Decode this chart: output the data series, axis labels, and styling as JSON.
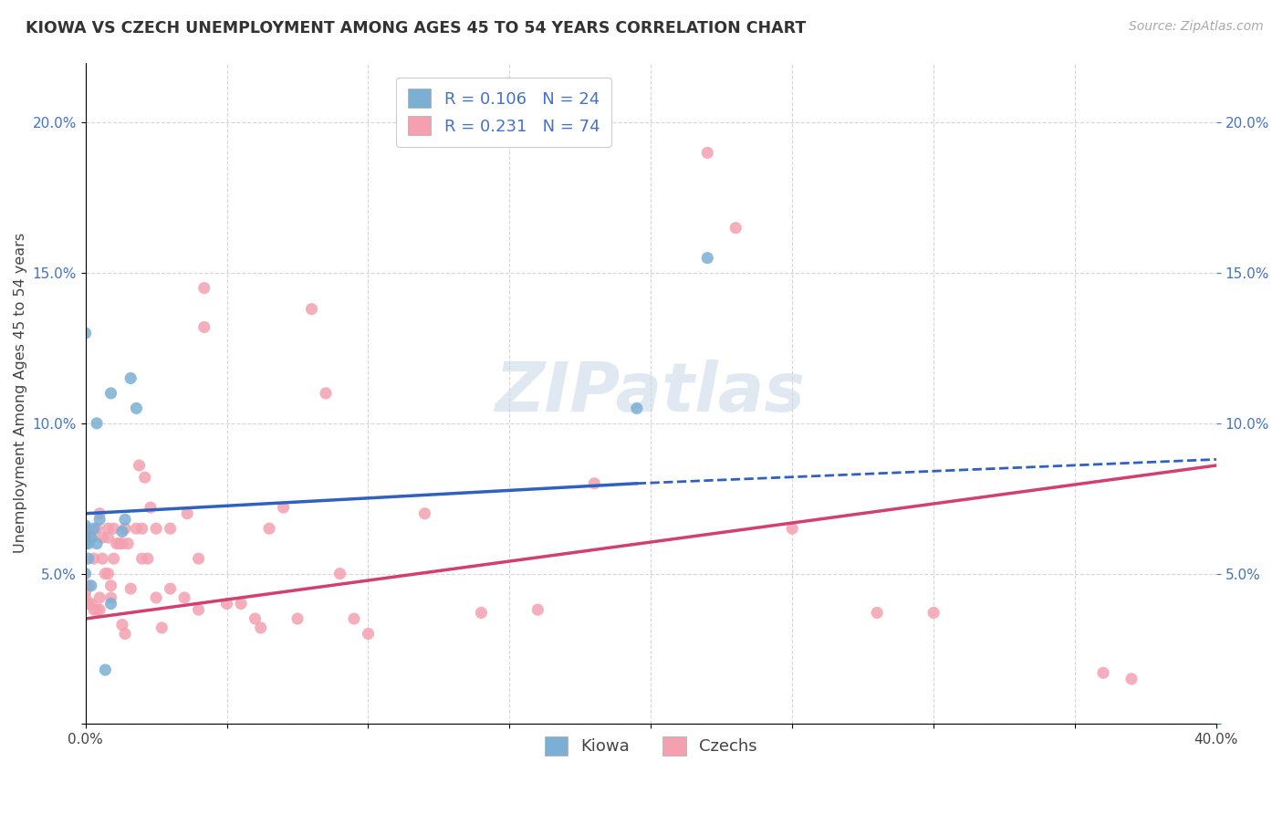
{
  "title": "KIOWA VS CZECH UNEMPLOYMENT AMONG AGES 45 TO 54 YEARS CORRELATION CHART",
  "source": "Source: ZipAtlas.com",
  "ylabel": "Unemployment Among Ages 45 to 54 years",
  "xlim": [
    0.0,
    0.4
  ],
  "ylim": [
    0.0,
    0.22
  ],
  "xticks": [
    0.0,
    0.05,
    0.1,
    0.15,
    0.2,
    0.25,
    0.3,
    0.35,
    0.4
  ],
  "yticks": [
    0.0,
    0.05,
    0.1,
    0.15,
    0.2
  ],
  "xtick_labels": [
    "0.0%",
    "",
    "",
    "",
    "",
    "",
    "",
    "",
    "40.0%"
  ],
  "ytick_labels": [
    "",
    "5.0%",
    "10.0%",
    "15.0%",
    "20.0%"
  ],
  "kiowa_color": "#7bafd4",
  "czechs_color": "#f4a0b0",
  "kiowa_line_color": "#3060c0",
  "czechs_line_color": "#d04070",
  "kiowa_R": "0.106",
  "kiowa_N": "24",
  "czechs_R": "0.231",
  "czechs_N": "74",
  "watermark": "ZIPatlas",
  "kiowa_line_solid": [
    [
      0.0,
      0.07
    ],
    [
      0.195,
      0.08
    ]
  ],
  "kiowa_line_dashed": [
    [
      0.195,
      0.08
    ],
    [
      0.4,
      0.088
    ]
  ],
  "czechs_line": [
    [
      0.0,
      0.035
    ],
    [
      0.4,
      0.086
    ]
  ],
  "kiowa_x": [
    0.0,
    0.0,
    0.0,
    0.0,
    0.0,
    0.0,
    0.0,
    0.001,
    0.001,
    0.002,
    0.002,
    0.003,
    0.004,
    0.004,
    0.005,
    0.007,
    0.009,
    0.009,
    0.013,
    0.014,
    0.016,
    0.018,
    0.195,
    0.22
  ],
  "kiowa_y": [
    0.05,
    0.06,
    0.062,
    0.064,
    0.065,
    0.066,
    0.13,
    0.055,
    0.06,
    0.046,
    0.062,
    0.065,
    0.06,
    0.1,
    0.068,
    0.018,
    0.04,
    0.11,
    0.064,
    0.068,
    0.115,
    0.105,
    0.105,
    0.155
  ],
  "czechs_x": [
    0.0,
    0.0,
    0.0,
    0.0,
    0.001,
    0.001,
    0.002,
    0.002,
    0.003,
    0.003,
    0.004,
    0.004,
    0.005,
    0.005,
    0.005,
    0.006,
    0.006,
    0.007,
    0.008,
    0.008,
    0.008,
    0.009,
    0.009,
    0.01,
    0.01,
    0.011,
    0.012,
    0.013,
    0.013,
    0.014,
    0.014,
    0.015,
    0.016,
    0.018,
    0.019,
    0.02,
    0.02,
    0.021,
    0.022,
    0.023,
    0.025,
    0.025,
    0.027,
    0.03,
    0.03,
    0.035,
    0.036,
    0.04,
    0.04,
    0.042,
    0.042,
    0.05,
    0.055,
    0.06,
    0.062,
    0.065,
    0.07,
    0.075,
    0.08,
    0.085,
    0.09,
    0.095,
    0.1,
    0.12,
    0.14,
    0.16,
    0.18,
    0.22,
    0.23,
    0.25,
    0.28,
    0.3,
    0.36,
    0.37
  ],
  "czechs_y": [
    0.04,
    0.042,
    0.044,
    0.06,
    0.04,
    0.046,
    0.04,
    0.062,
    0.038,
    0.055,
    0.038,
    0.065,
    0.038,
    0.042,
    0.07,
    0.055,
    0.062,
    0.05,
    0.05,
    0.062,
    0.065,
    0.042,
    0.046,
    0.055,
    0.065,
    0.06,
    0.06,
    0.033,
    0.06,
    0.03,
    0.065,
    0.06,
    0.045,
    0.065,
    0.086,
    0.055,
    0.065,
    0.082,
    0.055,
    0.072,
    0.042,
    0.065,
    0.032,
    0.045,
    0.065,
    0.042,
    0.07,
    0.038,
    0.055,
    0.132,
    0.145,
    0.04,
    0.04,
    0.035,
    0.032,
    0.065,
    0.072,
    0.035,
    0.138,
    0.11,
    0.05,
    0.035,
    0.03,
    0.07,
    0.037,
    0.038,
    0.08,
    0.19,
    0.165,
    0.065,
    0.037,
    0.037,
    0.017,
    0.015
  ]
}
